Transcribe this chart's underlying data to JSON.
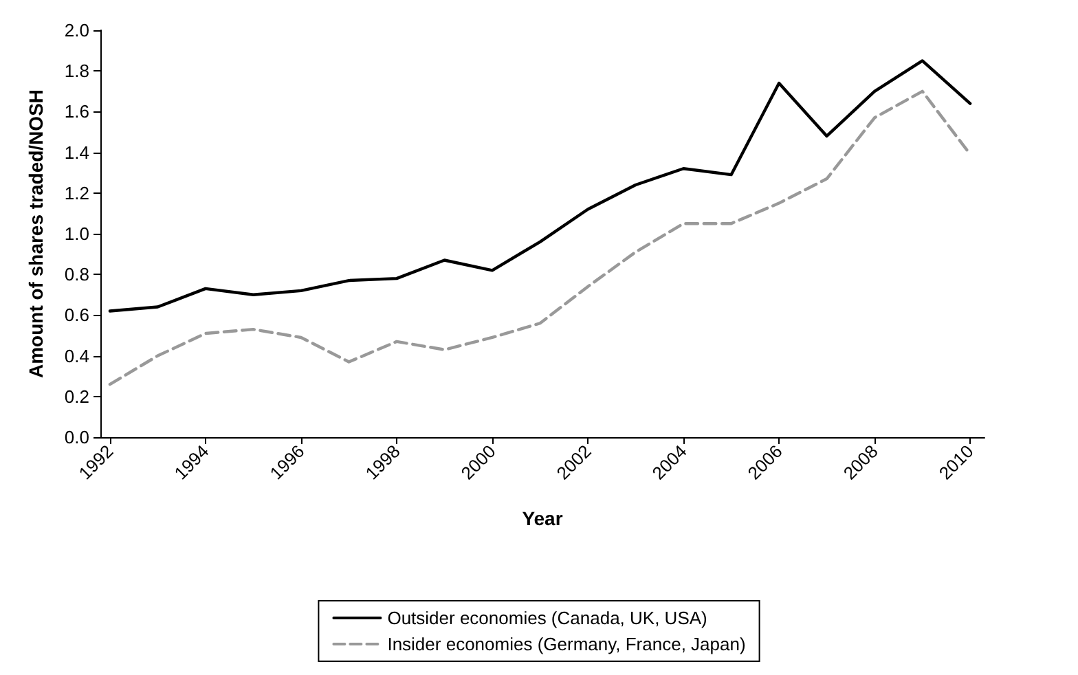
{
  "chart_data": {
    "type": "line",
    "xlabel": "Year",
    "ylabel": "Amount of shares traded/NOSH",
    "x": [
      1992,
      1993,
      1994,
      1995,
      1996,
      1997,
      1998,
      1999,
      2000,
      2001,
      2002,
      2003,
      2004,
      2005,
      2006,
      2007,
      2008,
      2009,
      2010
    ],
    "series": [
      {
        "name": "Outsider economies (Canada, UK, USA)",
        "color": "#000000",
        "line_style": "solid",
        "values": [
          0.62,
          0.64,
          0.73,
          0.7,
          0.72,
          0.77,
          0.78,
          0.87,
          0.82,
          0.96,
          1.12,
          1.24,
          1.32,
          1.29,
          1.74,
          1.48,
          1.7,
          1.85,
          1.64
        ]
      },
      {
        "name": "Insider economies (Germany, France, Japan)",
        "color": "#999999",
        "line_style": "dashed",
        "values": [
          0.26,
          0.4,
          0.51,
          0.53,
          0.49,
          0.37,
          0.47,
          0.43,
          0.49,
          0.56,
          0.74,
          0.91,
          1.05,
          1.05,
          1.15,
          1.27,
          1.57,
          1.7,
          1.39
        ]
      }
    ],
    "xlim": [
      1991.8,
      2010.3
    ],
    "xticks": [
      1992,
      1994,
      1996,
      1998,
      2000,
      2002,
      2004,
      2006,
      2008,
      2010
    ],
    "ylim": [
      0,
      2.0
    ],
    "yticks": [
      {
        "value": 0,
        "label": "0.0"
      },
      {
        "value": 0.2,
        "label": "0.2"
      },
      {
        "value": 0.4,
        "label": "0.4"
      },
      {
        "value": 0.6,
        "label": "0.6"
      },
      {
        "value": 0.8,
        "label": "0.8"
      },
      {
        "value": 1,
        "label": "1.0"
      },
      {
        "value": 1.2,
        "label": "1.2"
      },
      {
        "value": 1.4,
        "label": "1.4"
      },
      {
        "value": 1.6,
        "label": "1.6"
      },
      {
        "value": 1.8,
        "label": "1.8"
      },
      {
        "value": 2,
        "label": "2.0"
      }
    ],
    "grid": false,
    "legend": "bottom",
    "marker": "none"
  }
}
